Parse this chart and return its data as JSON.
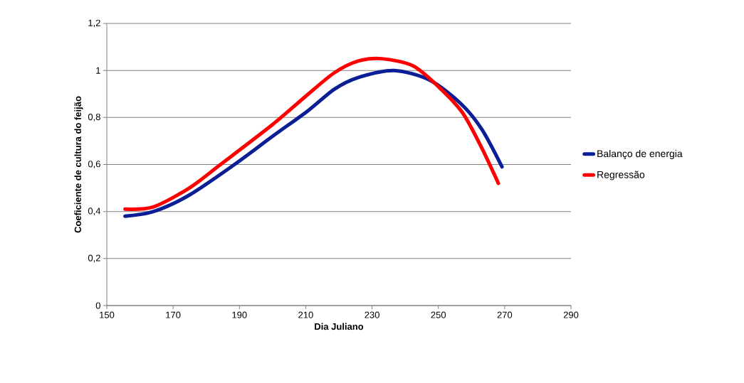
{
  "chart_data": {
    "type": "line",
    "xlabel": "Dia Juliano",
    "ylabel": "Coeficiente de cultura do feijão",
    "xlim": [
      150,
      290
    ],
    "xticks": [
      150,
      170,
      190,
      210,
      230,
      250,
      270,
      290
    ],
    "ylim": [
      0,
      1.2
    ],
    "yticks": [
      {
        "value": 0,
        "label": "0"
      },
      {
        "value": 0.2,
        "label": "0,2"
      },
      {
        "value": 0.4,
        "label": "0,4"
      },
      {
        "value": 0.6,
        "label": "0,6"
      },
      {
        "value": 0.8,
        "label": "0,8"
      },
      {
        "value": 1,
        "label": "1"
      },
      {
        "value": 1.2,
        "label": "1,2"
      }
    ],
    "grid": "y",
    "legend": "right",
    "marker": "none",
    "line_style": "solid",
    "series": [
      {
        "name": "Balanço de energia",
        "color": "#0a1e96",
        "x": [
          155.5,
          164.1,
          174.9,
          188.5,
          200,
          210.8,
          218.6,
          225.8,
          236.6,
          247.3,
          256.7,
          263.1,
          269.2
        ],
        "values": [
          0.38,
          0.4,
          0.47,
          0.6,
          0.72,
          0.83,
          0.92,
          0.97,
          1.0,
          0.96,
          0.86,
          0.75,
          0.59
        ]
      },
      {
        "name": "Regressão",
        "color": "#ff0000",
        "x": [
          155.5,
          164.1,
          174.9,
          184.3,
          200,
          210.8,
          218.6,
          225.8,
          233,
          242.3,
          250.1,
          257.3,
          263.1,
          268.1
        ],
        "values": [
          0.41,
          0.42,
          0.5,
          0.6,
          0.77,
          0.9,
          0.99,
          1.04,
          1.05,
          1.02,
          0.93,
          0.82,
          0.67,
          0.52
        ]
      }
    ]
  }
}
